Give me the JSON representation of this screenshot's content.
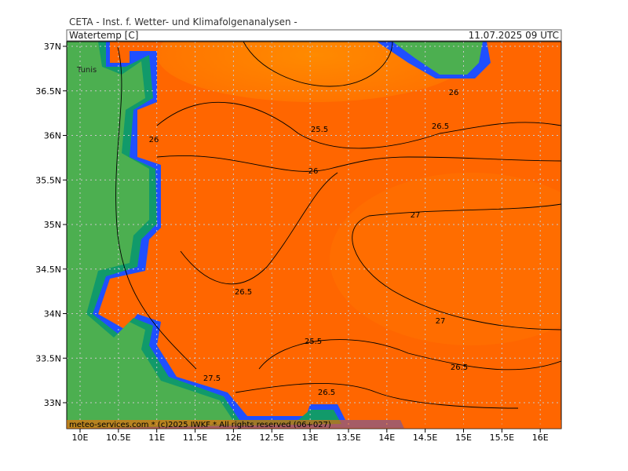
{
  "header": {
    "title": "CETA - Inst. f. Wetter- und Klimafolgenanalysen -",
    "variable": "Watertemp [C]",
    "valid_time": "11.07.2025 09 UTC"
  },
  "map": {
    "lat_labels": [
      "37N",
      "36.5N",
      "36N",
      "35.5N",
      "35N",
      "34.5N",
      "34N",
      "33.5N",
      "33N"
    ],
    "lon_labels": [
      "10E",
      "10.5E",
      "11E",
      "11.5E",
      "12E",
      "12.5E",
      "13E",
      "13.5E",
      "14E",
      "14.5E",
      "15E",
      "15.5E",
      "16E"
    ],
    "place_labels": [
      "Tunis"
    ],
    "contour_labels": [
      "26",
      "25.5",
      "26.5",
      "26",
      "26",
      "27",
      "26.5",
      "27",
      "25.5",
      "26.5",
      "27.5",
      "26.5"
    ]
  },
  "footer": {
    "text": "meteo-services.com * (c)2025 IWKF * All rights reserved (06+027)"
  }
}
